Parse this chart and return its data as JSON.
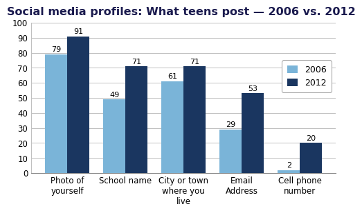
{
  "title": "Social media profiles: What teens post — 2006 vs. 2012",
  "categories": [
    "Photo of\nyourself",
    "School name",
    "City or town\nwhere you\nlive",
    "Email\nAddress",
    "Cell phone\nnumber"
  ],
  "values_2006": [
    79,
    49,
    61,
    29,
    2
  ],
  "values_2012": [
    91,
    71,
    71,
    53,
    20
  ],
  "color_2006": "#7ab4d8",
  "color_2012": "#1a3660",
  "legend_labels": [
    "2006",
    "2012"
  ],
  "ylim": [
    0,
    100
  ],
  "yticks": [
    0,
    10,
    20,
    30,
    40,
    50,
    60,
    70,
    80,
    90,
    100
  ],
  "bar_width": 0.38,
  "title_fontsize": 11.5,
  "tick_fontsize": 8.5,
  "value_fontsize": 8,
  "legend_fontsize": 9,
  "bg_color": "#ffffff",
  "title_color": "#1a1a4e",
  "grid_color": "#c0c0c0"
}
